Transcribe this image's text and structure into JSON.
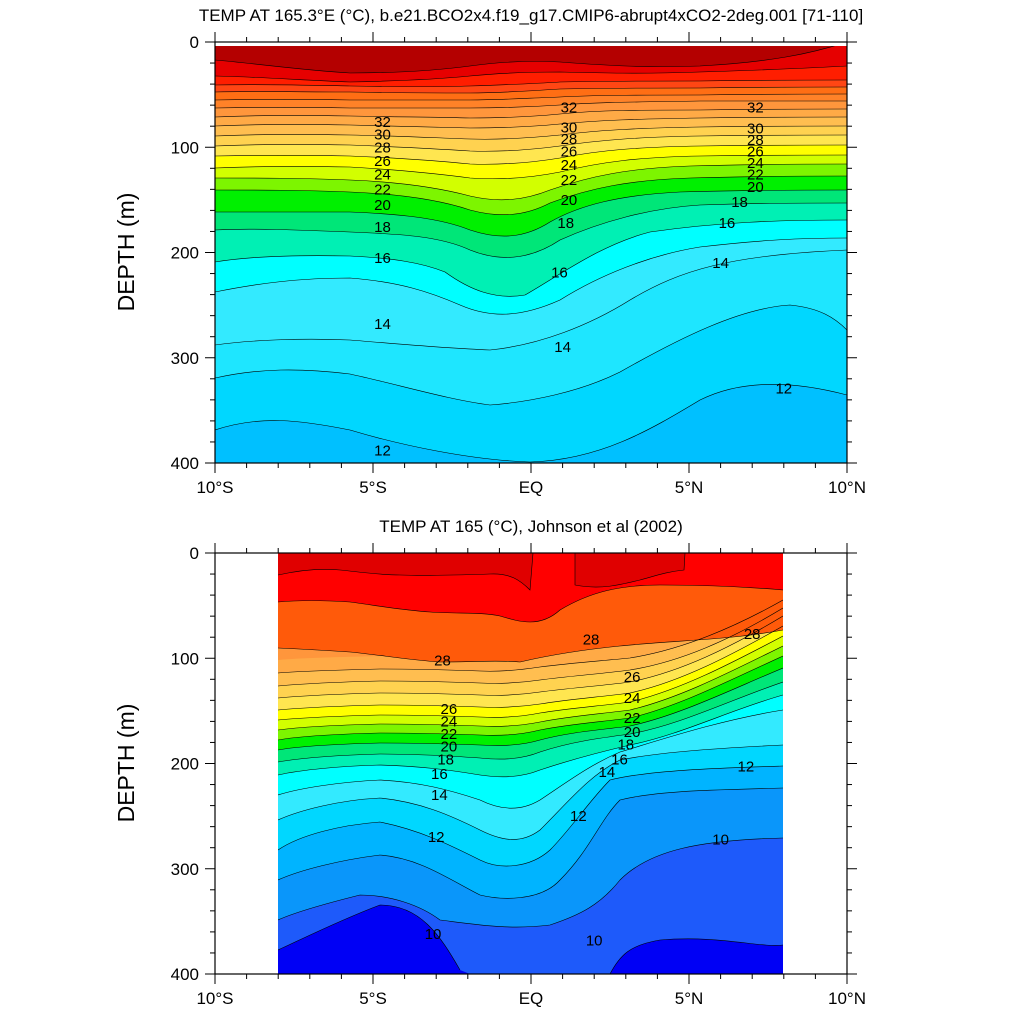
{
  "colors": {
    "palette": [
      "#0000f5",
      "#1e5afa",
      "#0a96fa",
      "#00b4ff",
      "#00d7ff",
      "#33eaff",
      "#00ffff",
      "#00f0b4",
      "#00e678",
      "#00f000",
      "#7df500",
      "#d2ff00",
      "#ffff00",
      "#ffdc32",
      "#ffc850",
      "#ffaa50",
      "#ff8c32",
      "#ff6e14",
      "#ff5000",
      "#ff0000",
      "#e00000",
      "#b40000"
    ]
  },
  "chart_data": [
    {
      "type": "contour",
      "title": "TEMP AT 165.3°E (°C), b.e21.BCO2x4.f19_g17.CMIP6-abrupt4xCO2-2deg.001 [71-110]",
      "xlabel": "",
      "ylabel": "DEPTH (m)",
      "xlim": [
        -10,
        10
      ],
      "ylim": [
        400,
        0
      ],
      "x_ticks": [
        -10,
        -5,
        0,
        5,
        10
      ],
      "x_tick_labels": [
        "10°S",
        "5°S",
        "EQ",
        "5°N",
        "10°N"
      ],
      "y_ticks": [
        0,
        100,
        200,
        300,
        400
      ],
      "y_tick_labels": [
        "0",
        "100",
        "200",
        "300",
        "400"
      ],
      "contour_interval": 1,
      "isotherm_labels": [
        {
          "value": 32,
          "x": -4.7,
          "y": 76,
          "text": "32"
        },
        {
          "value": 30,
          "x": -4.7,
          "y": 88,
          "text": "30"
        },
        {
          "value": 28,
          "x": -4.7,
          "y": 100,
          "text": "28"
        },
        {
          "value": 26,
          "x": -4.7,
          "y": 113,
          "text": "26"
        },
        {
          "value": 24,
          "x": -4.7,
          "y": 126,
          "text": "24"
        },
        {
          "value": 22,
          "x": -4.7,
          "y": 140,
          "text": "22"
        },
        {
          "value": 20,
          "x": -4.7,
          "y": 155,
          "text": "20"
        },
        {
          "value": 18,
          "x": -4.7,
          "y": 176,
          "text": "18"
        },
        {
          "value": 16,
          "x": -4.7,
          "y": 205,
          "text": "16"
        },
        {
          "value": 14,
          "x": -4.7,
          "y": 268,
          "text": "14"
        },
        {
          "value": 12,
          "x": -4.7,
          "y": 388,
          "text": "12"
        },
        {
          "value": 32,
          "x": 1.2,
          "y": 62,
          "text": "32"
        },
        {
          "value": 30,
          "x": 1.2,
          "y": 81,
          "text": "30"
        },
        {
          "value": 28,
          "x": 1.2,
          "y": 92,
          "text": "28"
        },
        {
          "value": 26,
          "x": 1.2,
          "y": 104,
          "text": "26"
        },
        {
          "value": 24,
          "x": 1.2,
          "y": 117,
          "text": "24"
        },
        {
          "value": 22,
          "x": 1.2,
          "y": 131,
          "text": "22"
        },
        {
          "value": 20,
          "x": 1.2,
          "y": 150,
          "text": "20"
        },
        {
          "value": 18,
          "x": 1.1,
          "y": 172,
          "text": "18"
        },
        {
          "value": 16,
          "x": 0.9,
          "y": 219,
          "text": "16"
        },
        {
          "value": 14,
          "x": 1.0,
          "y": 290,
          "text": "14"
        },
        {
          "value": 32,
          "x": 7.1,
          "y": 62,
          "text": "32"
        },
        {
          "value": 30,
          "x": 7.1,
          "y": 82,
          "text": "30"
        },
        {
          "value": 28,
          "x": 7.1,
          "y": 93,
          "text": "28"
        },
        {
          "value": 26,
          "x": 7.1,
          "y": 104,
          "text": "26"
        },
        {
          "value": 24,
          "x": 7.1,
          "y": 115,
          "text": "24"
        },
        {
          "value": 22,
          "x": 7.1,
          "y": 126,
          "text": "22"
        },
        {
          "value": 20,
          "x": 7.1,
          "y": 138,
          "text": "20"
        },
        {
          "value": 18,
          "x": 6.6,
          "y": 152,
          "text": "18"
        },
        {
          "value": 16,
          "x": 6.2,
          "y": 172,
          "text": "16"
        },
        {
          "value": 14,
          "x": 6.0,
          "y": 210,
          "text": "14"
        },
        {
          "value": 12,
          "x": 8.0,
          "y": 329,
          "text": "12"
        }
      ]
    },
    {
      "type": "contour",
      "title": "TEMP AT 165 (°C), Johnson et al (2002)",
      "xlabel": "",
      "ylabel": "DEPTH (m)",
      "xlim": [
        -10,
        10
      ],
      "ylim": [
        400,
        0
      ],
      "x_ticks": [
        -10,
        -5,
        0,
        5,
        10
      ],
      "x_tick_labels": [
        "10°S",
        "5°S",
        "EQ",
        "5°N",
        "10°N"
      ],
      "y_ticks": [
        0,
        100,
        200,
        300,
        400
      ],
      "y_tick_labels": [
        "0",
        "100",
        "200",
        "300",
        "400"
      ],
      "data_x_range": [
        -8,
        8
      ],
      "contour_interval": 1,
      "isotherm_labels": [
        {
          "value": 28,
          "x": -2.8,
          "y": 102,
          "text": "28"
        },
        {
          "value": 26,
          "x": -2.6,
          "y": 148,
          "text": "26"
        },
        {
          "value": 24,
          "x": -2.6,
          "y": 160,
          "text": "24"
        },
        {
          "value": 22,
          "x": -2.6,
          "y": 172,
          "text": "22"
        },
        {
          "value": 20,
          "x": -2.6,
          "y": 184,
          "text": "20"
        },
        {
          "value": 18,
          "x": -2.7,
          "y": 196,
          "text": "18"
        },
        {
          "value": 16,
          "x": -2.9,
          "y": 210,
          "text": "16"
        },
        {
          "value": 14,
          "x": -2.9,
          "y": 230,
          "text": "14"
        },
        {
          "value": 12,
          "x": -3.0,
          "y": 270,
          "text": "12"
        },
        {
          "value": 10,
          "x": -3.1,
          "y": 362,
          "text": "10"
        },
        {
          "value": 28,
          "x": 1.9,
          "y": 82,
          "text": "28"
        },
        {
          "value": 26,
          "x": 3.2,
          "y": 118,
          "text": "26"
        },
        {
          "value": 24,
          "x": 3.2,
          "y": 138,
          "text": "24"
        },
        {
          "value": 22,
          "x": 3.2,
          "y": 157,
          "text": "22"
        },
        {
          "value": 20,
          "x": 3.2,
          "y": 170,
          "text": "20"
        },
        {
          "value": 18,
          "x": 3.0,
          "y": 182,
          "text": "18"
        },
        {
          "value": 16,
          "x": 2.8,
          "y": 196,
          "text": "16"
        },
        {
          "value": 14,
          "x": 2.4,
          "y": 208,
          "text": "14"
        },
        {
          "value": 12,
          "x": 1.5,
          "y": 250,
          "text": "12"
        },
        {
          "value": 10,
          "x": 2.0,
          "y": 368,
          "text": "10"
        },
        {
          "value": 28,
          "x": 7.0,
          "y": 77,
          "text": "28"
        },
        {
          "value": 12,
          "x": 6.8,
          "y": 203,
          "text": "12"
        },
        {
          "value": 10,
          "x": 6.0,
          "y": 272,
          "text": "10"
        }
      ]
    }
  ]
}
